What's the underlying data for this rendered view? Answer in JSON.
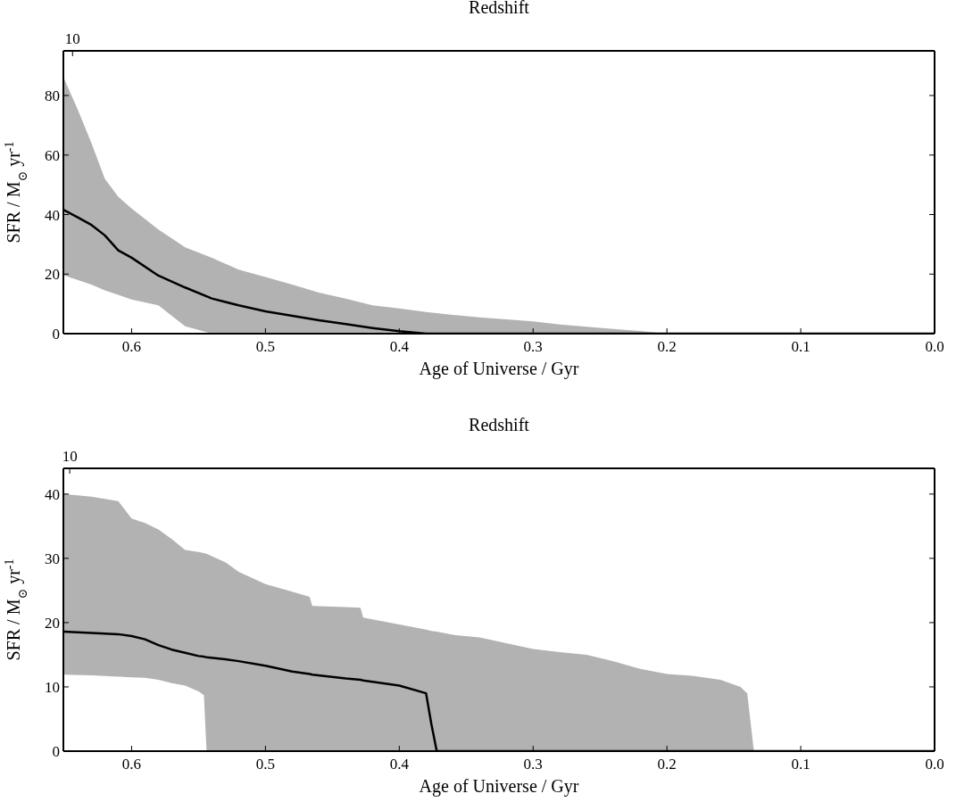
{
  "chart_data": [
    {
      "type": "line",
      "title": "Redshift",
      "xlabel": "Age of Universe / Gyr",
      "ylabel": "SFR / M$_{⊙}$ yr$^{-1}$",
      "annotations": [
        "10"
      ],
      "xlim": [
        0.651,
        0
      ],
      "xticks": [
        0.6,
        0.5,
        0.4,
        0.3,
        0.2,
        0.1,
        {
          "value": 0,
          "label": "0.0"
        }
      ],
      "ylim": [
        0,
        95
      ],
      "yticks": [
        0,
        20,
        40,
        60,
        80
      ],
      "x": [
        0.651,
        0.64,
        0.63,
        0.62,
        0.61,
        0.6,
        0.58,
        0.56,
        0.54,
        0.52,
        0.5,
        0.48,
        0.46,
        0.44,
        0.42,
        0.4,
        0.38,
        0.36,
        0.34,
        0.32,
        0.3,
        0.28,
        0.26,
        0.24,
        0.22,
        0.2,
        0.1,
        0.0
      ],
      "series": [
        {
          "color": "#000000",
          "values": [
            41.6,
            39.0,
            36.5,
            33,
            28,
            25.5,
            19.5,
            15.5,
            11.8,
            9.5,
            7.5,
            6.0,
            4.5,
            3.2,
            1.9,
            0.8,
            0,
            0,
            0,
            0,
            0,
            0,
            0,
            0,
            0,
            0,
            0,
            0
          ],
          "lower": [
            19.6,
            18.0,
            16.5,
            14.5,
            13,
            11.5,
            9.5,
            2.5,
            0,
            0,
            0,
            0,
            0,
            0,
            0,
            0,
            0,
            0,
            0,
            0,
            0,
            0,
            0,
            0,
            0,
            0,
            0,
            0
          ],
          "upper": [
            86.2,
            75,
            64,
            52,
            46,
            42,
            35,
            29,
            25.5,
            21.5,
            19,
            16.5,
            13.8,
            11.8,
            9.5,
            8.5,
            7.3,
            6.3,
            5.5,
            4.8,
            4.1,
            3.1,
            2.3,
            1.6,
            0.9,
            0,
            0,
            0
          ]
        }
      ]
    },
    {
      "type": "line",
      "title": "Redshift",
      "xlabel": "Age of Universe / Gyr",
      "ylabel": "SFR / M$_{⊙}$ yr$^{-1}$",
      "annotations": [
        "10"
      ],
      "xlim": [
        0.651,
        0
      ],
      "xticks": [
        0.6,
        0.5,
        0.4,
        0.3,
        0.2,
        0.1,
        {
          "value": 0,
          "label": "0.0"
        }
      ],
      "ylim": [
        0,
        44
      ],
      "yticks": [
        0,
        10,
        20,
        30,
        40
      ],
      "x": [
        0.651,
        0.63,
        0.61,
        0.6,
        0.59,
        0.58,
        0.57,
        0.56,
        0.55,
        0.546,
        0.544,
        0.53,
        0.52,
        0.5,
        0.48,
        0.467,
        0.465,
        0.44,
        0.429,
        0.427,
        0.4,
        0.38,
        0.376,
        0.372,
        0.36,
        0.34,
        0.32,
        0.3,
        0.28,
        0.26,
        0.24,
        0.22,
        0.2,
        0.18,
        0.16,
        0.145,
        0.14,
        0.135,
        0.1,
        0.0
      ],
      "series": [
        {
          "color": "#000000",
          "values": [
            18.6,
            18.4,
            18.2,
            17.9,
            17.4,
            16.5,
            15.8,
            15.3,
            14.8,
            14.7,
            14.6,
            14.3,
            14.0,
            13.3,
            12.4,
            12.0,
            11.9,
            11.3,
            11.1,
            11.0,
            10.2,
            9.0,
            4.2,
            0,
            0,
            0,
            0,
            0,
            0,
            0,
            0,
            0,
            0,
            0,
            0,
            0,
            0,
            0,
            0,
            0
          ],
          "lower": [
            11.9,
            11.8,
            11.6,
            11.5,
            11.4,
            11.1,
            10.6,
            10.2,
            9.3,
            8.7,
            0,
            0,
            0,
            0,
            0,
            0,
            0,
            0,
            0,
            0,
            0,
            0,
            0,
            0,
            0,
            0,
            0,
            0,
            0,
            0,
            0,
            0,
            0,
            0,
            0,
            0,
            0,
            0,
            0,
            0
          ],
          "upper": [
            40.0,
            39.6,
            38.9,
            36.2,
            35.5,
            34.5,
            33.0,
            31.3,
            31.0,
            30.8,
            30.7,
            29.4,
            27.9,
            26.0,
            24.8,
            24.0,
            22.6,
            22.4,
            22.3,
            20.8,
            19.7,
            18.9,
            18.7,
            18.6,
            18.1,
            17.7,
            16.8,
            15.9,
            15.4,
            15.0,
            14.0,
            12.8,
            12.0,
            11.7,
            11.1,
            10.0,
            9.0,
            0,
            0,
            0
          ]
        }
      ]
    }
  ]
}
